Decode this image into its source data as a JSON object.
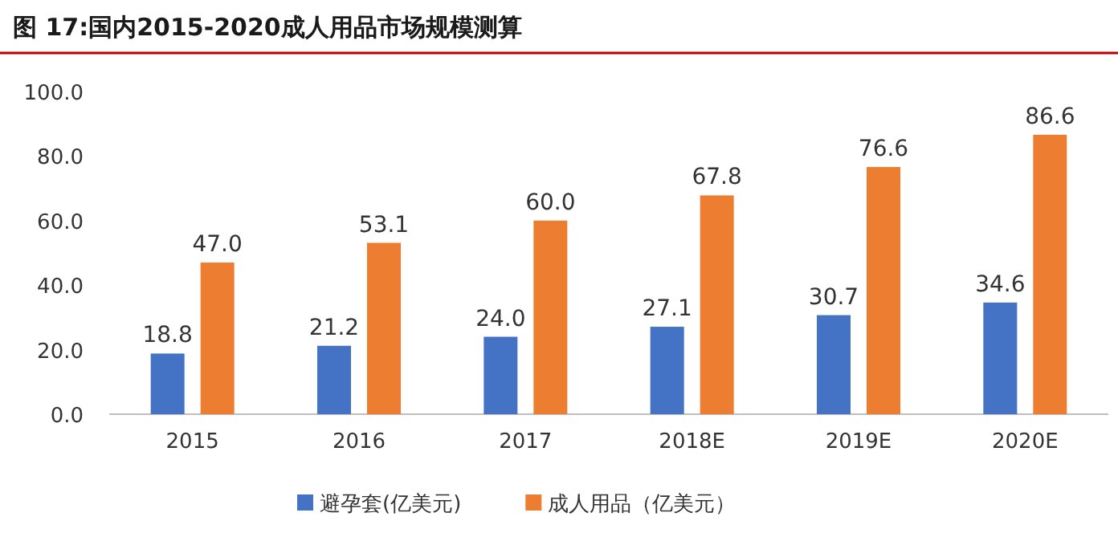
{
  "chart_data": {
    "type": "bar",
    "title": "图 17:国内2015-2020成人用品市场规模测算",
    "categories": [
      "2015",
      "2016",
      "2017",
      "2018E",
      "2019E",
      "2020E"
    ],
    "series": [
      {
        "name": "避孕套(亿美元)",
        "color": "#4472c4",
        "values": [
          18.8,
          21.2,
          24.0,
          27.1,
          30.7,
          34.6
        ],
        "value_labels": [
          "18.8",
          "21.2",
          "24.0",
          "27.1",
          "30.7",
          "34.6"
        ]
      },
      {
        "name": "成人用品（亿美元）",
        "color": "#ed7d31",
        "values": [
          47.0,
          53.1,
          60.0,
          67.8,
          76.6,
          86.6
        ],
        "value_labels": [
          "47.0",
          "53.1",
          "60.0",
          "67.8",
          "76.6",
          "86.6"
        ]
      }
    ],
    "ylim": [
      0,
      100
    ],
    "yticks": [
      {
        "value": 0,
        "label": "0.0"
      },
      {
        "value": 20,
        "label": "20.0"
      },
      {
        "value": 40,
        "label": "40.0"
      },
      {
        "value": 60,
        "label": "60.0"
      },
      {
        "value": 80,
        "label": "80.0"
      },
      {
        "value": 100,
        "label": "100.0"
      }
    ],
    "legend": "bottom"
  }
}
